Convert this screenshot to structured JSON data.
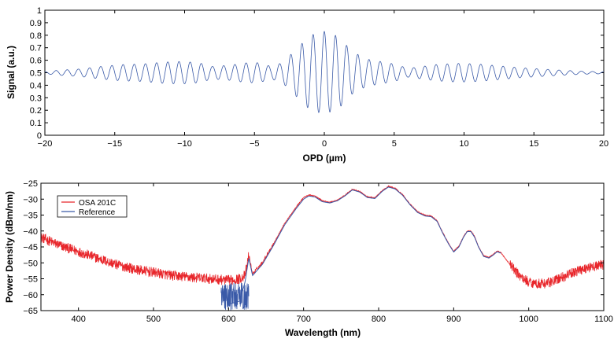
{
  "chart_data": [
    {
      "type": "line",
      "xlabel": "OPD (µm)",
      "ylabel": "Signal (a.u.)",
      "xlim": [
        -20,
        20
      ],
      "ylim": [
        0,
        1
      ],
      "xticks": [
        -20,
        -15,
        -10,
        -5,
        0,
        5,
        10,
        15,
        20
      ],
      "xtick_labels": [
        "−20",
        "−15",
        "−10",
        "−5",
        "0",
        "5",
        "10",
        "15",
        "20"
      ],
      "yticks": [
        0,
        0.1,
        0.2,
        0.3,
        0.4,
        0.5,
        0.6,
        0.7,
        0.8,
        0.9,
        1
      ],
      "ytick_labels": [
        "0",
        "0.1",
        "0.2",
        "0.3",
        "0.4",
        "0.5",
        "0.6",
        "0.7",
        "0.8",
        "0.9",
        "1"
      ],
      "grid": false,
      "series": [
        {
          "color": "#3a5aa8",
          "baseline": 0.5,
          "fringe_period_um": 0.8,
          "envelope": [
            {
              "x": -20,
              "amp": 0.008
            },
            {
              "x": -19,
              "amp": 0.02
            },
            {
              "x": -17.5,
              "amp": 0.03
            },
            {
              "x": -16,
              "amp": 0.05
            },
            {
              "x": -14.5,
              "amp": 0.065
            },
            {
              "x": -13,
              "amp": 0.07
            },
            {
              "x": -11.5,
              "amp": 0.085
            },
            {
              "x": -10.2,
              "amp": 0.09
            },
            {
              "x": -9,
              "amp": 0.08
            },
            {
              "x": -8,
              "amp": 0.05
            },
            {
              "x": -6.8,
              "amp": 0.06
            },
            {
              "x": -5.5,
              "amp": 0.08
            },
            {
              "x": -4.7,
              "amp": 0.08
            },
            {
              "x": -3.8,
              "amp": 0.05
            },
            {
              "x": -3,
              "amp": 0.08
            },
            {
              "x": -2,
              "amp": 0.19
            },
            {
              "x": -1,
              "amp": 0.3
            },
            {
              "x": 0,
              "amp": 0.33
            },
            {
              "x": 1,
              "amp": 0.29
            },
            {
              "x": 2,
              "amp": 0.17
            },
            {
              "x": 3,
              "amp": 0.11
            },
            {
              "x": 4,
              "amp": 0.09
            },
            {
              "x": 5,
              "amp": 0.07
            },
            {
              "x": 6,
              "amp": 0.035
            },
            {
              "x": 7,
              "amp": 0.05
            },
            {
              "x": 8,
              "amp": 0.065
            },
            {
              "x": 9.5,
              "amp": 0.075
            },
            {
              "x": 11,
              "amp": 0.07
            },
            {
              "x": 12.5,
              "amp": 0.055
            },
            {
              "x": 14,
              "amp": 0.04
            },
            {
              "x": 15.5,
              "amp": 0.03
            },
            {
              "x": 17,
              "amp": 0.02
            },
            {
              "x": 18.5,
              "amp": 0.012
            },
            {
              "x": 20,
              "amp": 0.008
            }
          ]
        }
      ]
    },
    {
      "type": "line",
      "xlabel": "Wavelength (nm)",
      "ylabel": "Power Density (dBm/nm)",
      "xlim": [
        350,
        1100
      ],
      "ylim": [
        -65,
        -25
      ],
      "xticks": [
        400,
        500,
        600,
        700,
        800,
        900,
        1000,
        1100
      ],
      "xtick_labels": [
        "400",
        "500",
        "600",
        "700",
        "800",
        "900",
        "1000",
        "1100"
      ],
      "yticks": [
        -65,
        -60,
        -55,
        -50,
        -45,
        -40,
        -35,
        -30,
        -25
      ],
      "ytick_labels": [
        "−65",
        "−60",
        "−55",
        "−50",
        "−45",
        "−40",
        "−35",
        "−30",
        "−25"
      ],
      "grid": false,
      "legend": {
        "position": "top-left"
      },
      "series": [
        {
          "name": "Reference",
          "color": "#3a5aa8",
          "x": [
            600,
            615,
            622,
            627,
            632,
            645,
            660,
            675,
            690,
            700,
            707,
            715,
            725,
            735,
            745,
            755,
            765,
            775,
            785,
            795,
            805,
            813,
            822,
            832,
            842,
            852,
            862,
            870,
            878,
            885,
            893,
            900,
            907,
            913,
            918,
            923,
            928,
            933,
            940,
            947,
            953,
            958,
            963
          ],
          "y": [
            -63,
            -62,
            -56,
            -48.5,
            -54,
            -50.5,
            -44.5,
            -38,
            -33,
            -30,
            -29,
            -29.3,
            -30.8,
            -31.2,
            -30.5,
            -29,
            -27.1,
            -27.8,
            -29.5,
            -29.8,
            -27.5,
            -26.2,
            -26.8,
            -28.8,
            -31.8,
            -34.2,
            -35.3,
            -35.5,
            -37,
            -40.5,
            -44,
            -46.6,
            -45,
            -42,
            -40.2,
            -40.2,
            -42,
            -45,
            -48,
            -48.5,
            -47.5,
            -46.5,
            -47
          ],
          "noise_region": [
            590,
            627
          ],
          "noise_range": [
            -65,
            -56
          ]
        },
        {
          "name": "OSA 201C",
          "color": "#e8262b",
          "x": [
            350,
            375,
            400,
            425,
            450,
            475,
            500,
            525,
            550,
            575,
            600,
            615,
            622,
            627,
            632,
            645,
            660,
            675,
            690,
            700,
            707,
            715,
            725,
            735,
            745,
            755,
            765,
            775,
            785,
            795,
            805,
            813,
            822,
            832,
            842,
            852,
            862,
            870,
            878,
            885,
            893,
            900,
            907,
            913,
            918,
            923,
            928,
            933,
            940,
            947,
            953,
            958,
            963,
            970,
            980,
            990,
            1000,
            1010,
            1020,
            1030,
            1040,
            1050,
            1060,
            1070,
            1080,
            1090,
            1100
          ],
          "y": [
            -42,
            -44.5,
            -46.5,
            -48.5,
            -50.5,
            -52,
            -53,
            -54,
            -54.5,
            -55,
            -55.5,
            -55,
            -54,
            -47.5,
            -53.5,
            -50,
            -44,
            -37.5,
            -32.5,
            -29.5,
            -28.7,
            -29,
            -30.5,
            -31,
            -30.3,
            -28.8,
            -26.9,
            -27.6,
            -29.3,
            -29.6,
            -27.3,
            -26,
            -26.6,
            -28.6,
            -31.6,
            -34,
            -35.1,
            -35.3,
            -36.8,
            -40.3,
            -43.8,
            -46.4,
            -44.8,
            -41.8,
            -40,
            -40,
            -41.8,
            -44.8,
            -47.8,
            -48.3,
            -47.3,
            -46.3,
            -46.8,
            -49,
            -52,
            -54.5,
            -56,
            -56.5,
            -56.5,
            -56,
            -55,
            -54,
            -53,
            -52,
            -51.5,
            -51,
            -50.5
          ],
          "noise_amp": 1.6
        }
      ]
    }
  ]
}
